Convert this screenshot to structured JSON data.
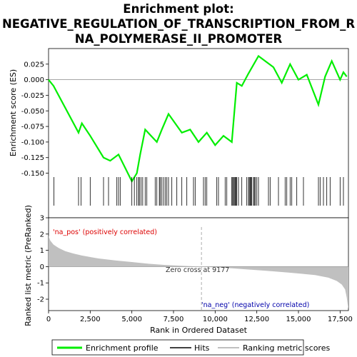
{
  "chart_data": [
    {
      "type": "line",
      "panel": "enrichment",
      "title": "Enrichment plot: NEGATIVE_REGULATION_OF_TRANSCRIPTION_FROM_RNA_POLYMERASE_II_PROMOTER",
      "title_lines": [
        "Enrichment plot:",
        "NEGATIVE_REGULATION_OF_TRANSCRIPTION_FROM_R",
        "NA_POLYMERASE_II_PROMOTER"
      ],
      "ylabel": "Enrichment score (ES)",
      "xlim": [
        0,
        18000
      ],
      "ylim": [
        -0.17,
        0.05
      ],
      "yticks": [
        -0.15,
        -0.125,
        -0.1,
        -0.075,
        -0.05,
        -0.025,
        0.0,
        0.025
      ],
      "ytick_labels": [
        "-0.150",
        "-0.125",
        "-0.100",
        "-0.075",
        "-0.050",
        "-0.025",
        "0.000",
        "0.025"
      ],
      "line_color": "#00ee00",
      "series": [
        {
          "name": "Enrichment profile",
          "x": [
            0,
            300,
            1800,
            2000,
            2500,
            3300,
            3700,
            4200,
            5000,
            5300,
            5500,
            5800,
            6500,
            6800,
            7200,
            8000,
            8500,
            9000,
            9500,
            10000,
            10500,
            11000,
            11300,
            11600,
            12000,
            12600,
            13500,
            14000,
            14500,
            15000,
            15500,
            16200,
            16600,
            17000,
            17500,
            17700,
            17900
          ],
          "y": [
            0.0,
            -0.01,
            -0.085,
            -0.07,
            -0.09,
            -0.125,
            -0.13,
            -0.12,
            -0.163,
            -0.15,
            -0.12,
            -0.08,
            -0.1,
            -0.08,
            -0.055,
            -0.085,
            -0.08,
            -0.1,
            -0.085,
            -0.105,
            -0.09,
            -0.1,
            -0.005,
            -0.01,
            0.01,
            0.038,
            0.02,
            -0.005,
            0.025,
            0.0,
            0.008,
            -0.04,
            0.005,
            0.03,
            0.0,
            0.012,
            0.005
          ]
        }
      ],
      "hits_legend": "Hits",
      "hits": [
        320,
        1800,
        1950,
        2500,
        3300,
        3600,
        4100,
        4200,
        4300,
        5000,
        5150,
        5300,
        5400,
        5450,
        5550,
        5650,
        5800,
        5900,
        6400,
        6500,
        6650,
        6700,
        6800,
        6900,
        7000,
        7100,
        7200,
        7400,
        7700,
        8000,
        8300,
        8700,
        8800,
        9300,
        9400,
        9500,
        10100,
        10200,
        10600,
        10700,
        11000,
        11050,
        11100,
        11150,
        11200,
        11250,
        11300,
        11400,
        11600,
        11900,
        12000,
        12050,
        12100,
        12150,
        12200,
        12300,
        12350,
        12400,
        12500,
        12600,
        13200,
        13300,
        13800,
        14200,
        14300,
        14500,
        14600,
        14900,
        15300,
        16200,
        16300,
        16500,
        16700,
        16900,
        17500,
        17700
      ]
    },
    {
      "type": "area",
      "panel": "ranked_list_metric",
      "ylabel": "Ranked list metric (PreRanked)",
      "xlabel": "Rank in Ordered Dataset",
      "xlim": [
        0,
        18000
      ],
      "ylim": [
        -2.7,
        3.0
      ],
      "yticks": [
        -2,
        -1,
        0,
        1,
        2,
        3
      ],
      "ytick_labels": [
        "-2",
        "-1",
        "0",
        "1",
        "2",
        "3"
      ],
      "xticks": [
        0,
        2500,
        5000,
        7500,
        10000,
        12500,
        15000,
        17500
      ],
      "xtick_labels": [
        "0",
        "2,500",
        "5,000",
        "7,500",
        "10,000",
        "12,500",
        "15,000",
        "17,500"
      ],
      "fill_color": "#c0c0c0",
      "legend_name": "Ranking metric scores",
      "x": [
        0,
        100,
        300,
        600,
        1000,
        1500,
        2000,
        3000,
        4000,
        5000,
        6000,
        7000,
        8000,
        9177,
        10000,
        11000,
        12000,
        13000,
        14000,
        15000,
        16000,
        16800,
        17300,
        17600,
        17800,
        17900,
        17950,
        18000
      ],
      "values": [
        1.9,
        1.6,
        1.35,
        1.15,
        0.95,
        0.8,
        0.68,
        0.5,
        0.38,
        0.28,
        0.18,
        0.1,
        0.05,
        0.0,
        -0.05,
        -0.1,
        -0.18,
        -0.25,
        -0.33,
        -0.42,
        -0.52,
        -0.68,
        -0.88,
        -1.1,
        -1.4,
        -1.9,
        -2.3,
        -2.6
      ],
      "zero_cross_label": "Zero cross at 9177",
      "zero_cross": 9177,
      "pos_label": "'na_pos' (positively correlated)",
      "neg_label": "'na_neg' (negatively correlated)",
      "pos_color": "#dd0000",
      "neg_color": "#0000aa"
    }
  ],
  "legend": {
    "items": [
      {
        "label": "Enrichment profile",
        "color": "#00ee00"
      },
      {
        "label": "Hits",
        "color": "#000000"
      },
      {
        "label": "Ranking metric scores",
        "color": "#c0c0c0"
      }
    ]
  }
}
